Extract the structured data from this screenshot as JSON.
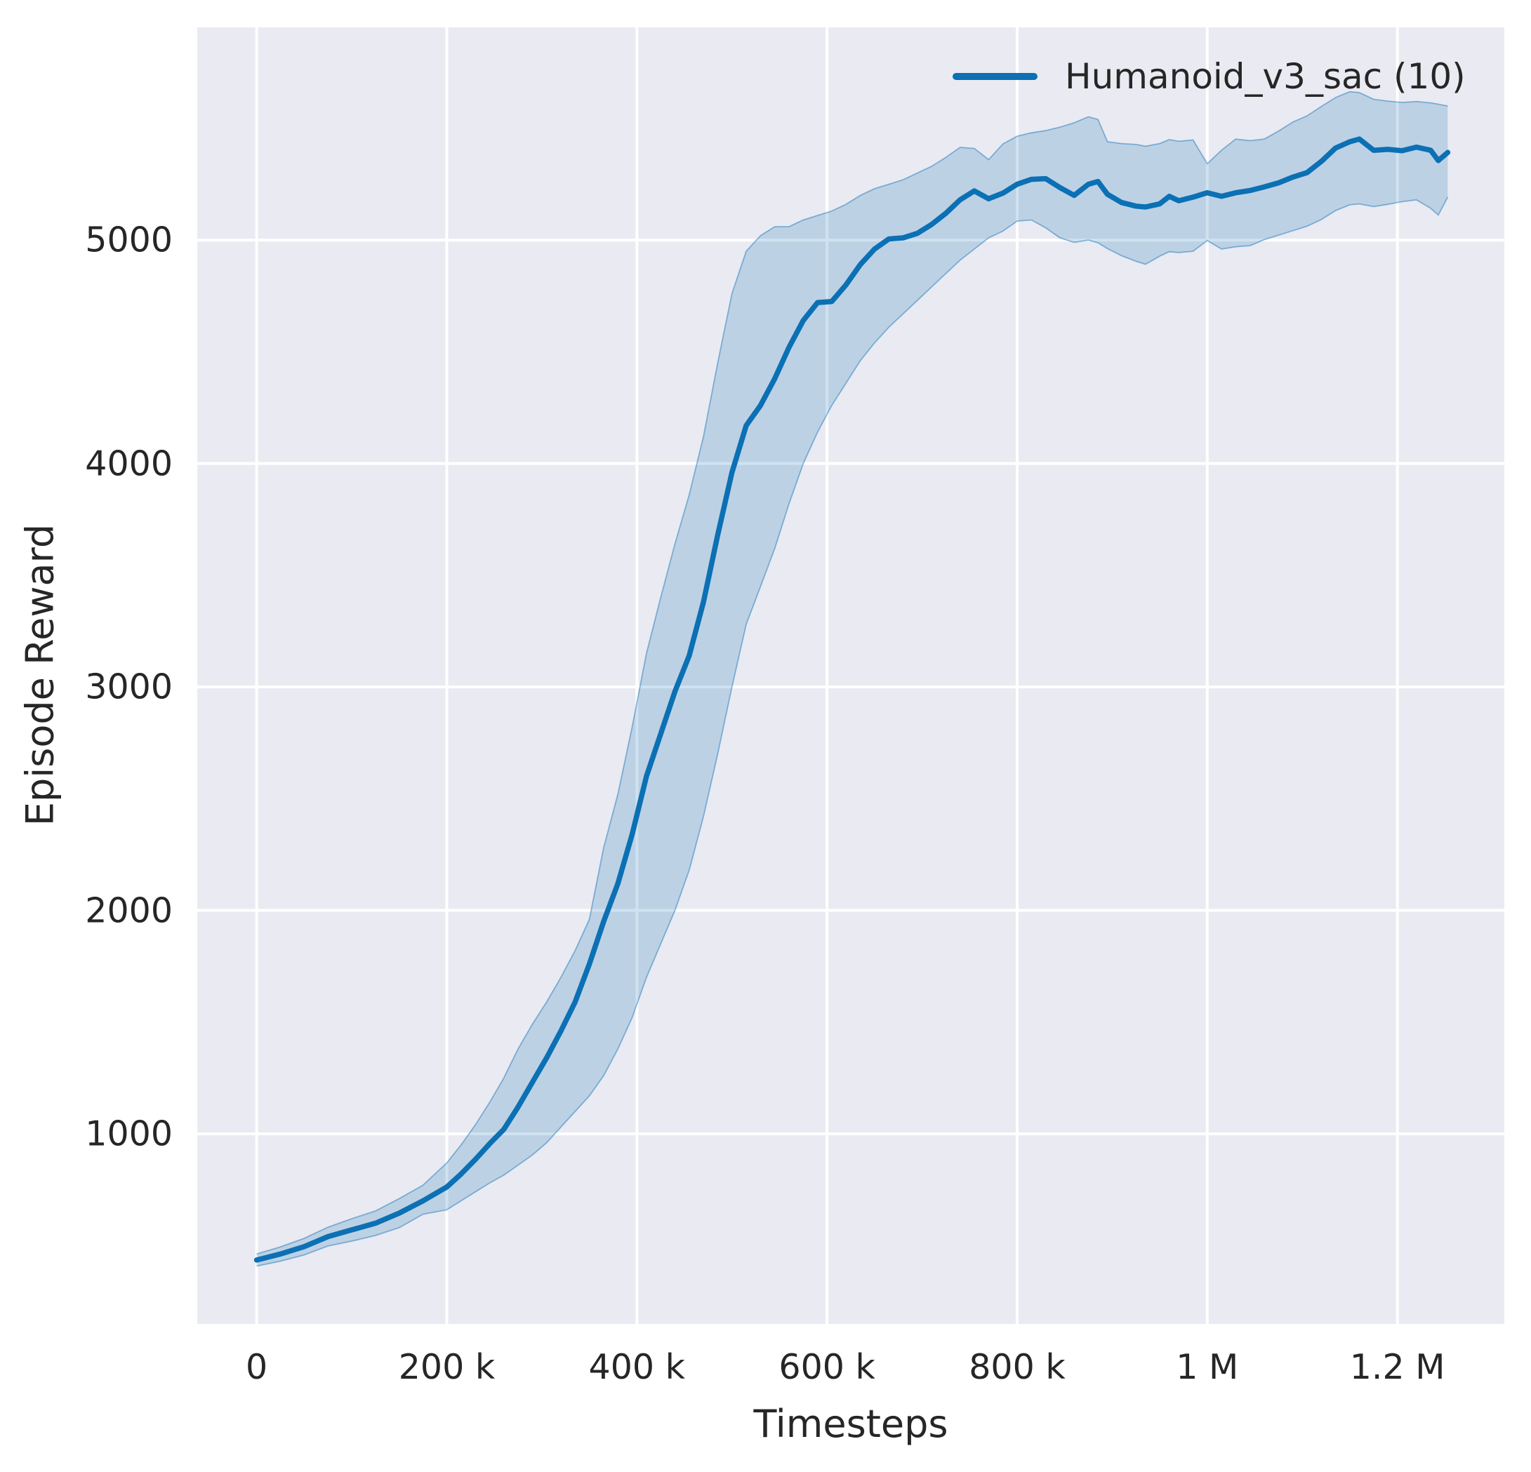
{
  "figure": {
    "background": "#ffffff",
    "plot_bg": "#eaeaf2",
    "grid_color": "#ffffff",
    "text_color": "#262626"
  },
  "legend": {
    "label": "Humanoid_v3_sac (10)",
    "color": "#0b70b4",
    "position": "upper right"
  },
  "axes": {
    "x": {
      "label": "Timesteps",
      "range": [
        -62500,
        1312500
      ],
      "ticks": [
        {
          "value": 0,
          "label": "0"
        },
        {
          "value": 200000,
          "label": "200 k"
        },
        {
          "value": 400000,
          "label": "400 k"
        },
        {
          "value": 600000,
          "label": "600 k"
        },
        {
          "value": 800000,
          "label": "800 k"
        },
        {
          "value": 1000000,
          "label": "1 M"
        },
        {
          "value": 1200000,
          "label": "1.2 M"
        }
      ]
    },
    "y": {
      "label": "Episode Reward",
      "range": [
        149,
        5952
      ],
      "ticks": [
        {
          "value": 1000,
          "label": "1000"
        },
        {
          "value": 2000,
          "label": "2000"
        },
        {
          "value": 3000,
          "label": "3000"
        },
        {
          "value": 4000,
          "label": "4000"
        },
        {
          "value": 5000,
          "label": "5000"
        }
      ]
    }
  },
  "chart_data": {
    "type": "line",
    "title": "",
    "xlabel": "Timesteps",
    "ylabel": "Episode Reward",
    "xlim": [
      -62500,
      1312500
    ],
    "ylim": [
      149,
      5952
    ],
    "grid": true,
    "legend_position": "upper right",
    "band_alpha": 0.2,
    "series": [
      {
        "name": "Humanoid_v3_sac (10)",
        "color": "#0b70b4",
        "x": [
          0,
          25000,
          50000,
          75000,
          100000,
          125000,
          150000,
          175000,
          200000,
          215000,
          230000,
          245000,
          260000,
          275000,
          290000,
          305000,
          320000,
          335000,
          350000,
          365000,
          380000,
          395000,
          410000,
          425000,
          440000,
          455000,
          470000,
          485000,
          500000,
          515000,
          530000,
          545000,
          560000,
          575000,
          590000,
          605000,
          620000,
          635000,
          650000,
          665000,
          680000,
          695000,
          710000,
          725000,
          740000,
          755000,
          770000,
          785000,
          800000,
          815000,
          830000,
          845000,
          860000,
          875000,
          885000,
          895000,
          910000,
          925000,
          935000,
          950000,
          960000,
          970000,
          985000,
          1000000,
          1015000,
          1030000,
          1045000,
          1060000,
          1075000,
          1090000,
          1105000,
          1120000,
          1135000,
          1150000,
          1160000,
          1175000,
          1190000,
          1205000,
          1220000,
          1235000,
          1243000,
          1253000
        ],
        "mean": [
          435,
          462,
          495,
          540,
          570,
          600,
          645,
          700,
          762,
          820,
          885,
          955,
          1020,
          1120,
          1230,
          1340,
          1460,
          1590,
          1760,
          1950,
          2120,
          2340,
          2600,
          2790,
          2980,
          3140,
          3380,
          3680,
          3960,
          4170,
          4260,
          4380,
          4520,
          4640,
          4720,
          4725,
          4800,
          4890,
          4960,
          5005,
          5010,
          5030,
          5070,
          5120,
          5180,
          5220,
          5185,
          5210,
          5250,
          5272,
          5275,
          5235,
          5200,
          5250,
          5262,
          5205,
          5168,
          5152,
          5148,
          5162,
          5196,
          5176,
          5192,
          5212,
          5196,
          5212,
          5222,
          5238,
          5256,
          5282,
          5302,
          5352,
          5412,
          5440,
          5452,
          5402,
          5406,
          5400,
          5416,
          5402,
          5356,
          5392
        ],
        "band_lower": [
          408,
          430,
          458,
          498,
          520,
          545,
          580,
          640,
          660,
          700,
          740,
          780,
          815,
          860,
          905,
          960,
          1030,
          1100,
          1170,
          1260,
          1380,
          1520,
          1700,
          1850,
          2000,
          2180,
          2420,
          2700,
          3000,
          3280,
          3450,
          3620,
          3820,
          4000,
          4140,
          4260,
          4360,
          4460,
          4540,
          4610,
          4670,
          4730,
          4790,
          4850,
          4910,
          4960,
          5010,
          5040,
          5085,
          5090,
          5055,
          5010,
          4990,
          5000,
          4988,
          4962,
          4930,
          4905,
          4892,
          4928,
          4948,
          4944,
          4950,
          4998,
          4960,
          4970,
          4975,
          5002,
          5022,
          5042,
          5062,
          5092,
          5132,
          5158,
          5162,
          5150,
          5160,
          5172,
          5180,
          5142,
          5112,
          5192
        ],
        "band_upper": [
          462,
          494,
          532,
          582,
          620,
          655,
          710,
          770,
          870,
          950,
          1040,
          1140,
          1250,
          1380,
          1490,
          1590,
          1700,
          1820,
          1960,
          2280,
          2520,
          2820,
          3150,
          3400,
          3640,
          3860,
          4120,
          4450,
          4760,
          4950,
          5020,
          5060,
          5060,
          5090,
          5110,
          5130,
          5160,
          5200,
          5230,
          5250,
          5270,
          5300,
          5330,
          5370,
          5415,
          5410,
          5360,
          5430,
          5465,
          5480,
          5490,
          5505,
          5525,
          5552,
          5540,
          5440,
          5432,
          5428,
          5420,
          5432,
          5450,
          5442,
          5448,
          5342,
          5402,
          5452,
          5445,
          5452,
          5488,
          5528,
          5556,
          5598,
          5638,
          5664,
          5660,
          5630,
          5622,
          5616,
          5620,
          5614,
          5608,
          5600
        ]
      }
    ]
  }
}
